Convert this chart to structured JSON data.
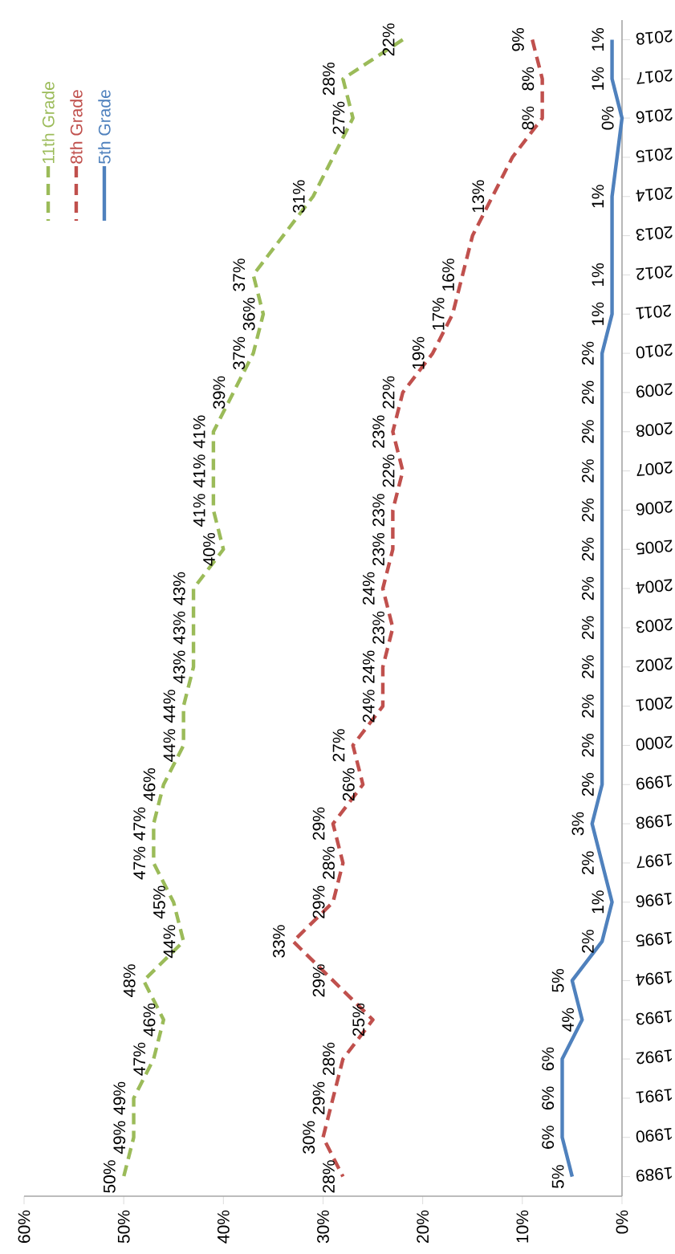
{
  "chart_data": {
    "type": "line",
    "orientation": "horizontal",
    "categories": [
      "2018",
      "2017",
      "2016",
      "2015",
      "2014",
      "2013",
      "2012",
      "2011",
      "2010",
      "2009",
      "2008",
      "2007",
      "2006",
      "2005",
      "2004",
      "2003",
      "2002",
      "2001",
      "2000",
      "1999",
      "1998",
      "1997",
      "1996",
      "1995",
      "1994",
      "1993",
      "1992",
      "1991",
      "1990",
      "1989"
    ],
    "series": [
      {
        "name": "11th Grade",
        "color": "#9bbb59",
        "line_style": "dashed",
        "values": [
          22,
          28,
          27,
          29,
          31,
          34,
          37,
          36,
          37,
          39,
          41,
          41,
          41,
          40,
          43,
          43,
          43,
          44,
          44,
          46,
          47,
          47,
          45,
          44,
          48,
          46,
          47,
          49,
          49,
          50
        ],
        "value_labels": [
          "22%",
          "28%",
          "27%",
          null,
          "31%",
          null,
          "37%",
          "36%",
          "37%",
          "39%",
          "41%",
          "41%",
          "41%",
          "40%",
          "43%",
          "43%",
          "43%",
          "44%",
          "44%",
          "46%",
          "47%",
          "47%",
          "45%",
          "44%",
          "48%",
          "46%",
          "47%",
          "49%",
          "49%",
          "50%"
        ]
      },
      {
        "name": "8th Grade",
        "color": "#c0504d",
        "line_style": "dashed",
        "values": [
          9,
          8,
          8,
          11,
          13,
          15,
          16,
          17,
          19,
          22,
          23,
          22,
          23,
          23,
          24,
          23,
          24,
          24,
          27,
          26,
          29,
          28,
          29,
          33,
          29,
          25,
          28,
          29,
          30,
          28
        ],
        "value_labels": [
          "9%",
          "8%",
          "8%",
          null,
          "13%",
          null,
          "16%",
          "17%",
          "19%",
          "22%",
          "23%",
          "22%",
          "23%",
          "23%",
          "24%",
          "23%",
          "24%",
          "24%",
          "27%",
          "26%",
          "29%",
          "28%",
          "29%",
          "33%",
          "29%",
          "25%",
          "28%",
          "29%",
          "30%",
          "28%"
        ]
      },
      {
        "name": "5th Grade",
        "color": "#4f81bd",
        "line_style": "solid",
        "values": [
          1,
          1,
          0,
          0.5,
          1,
          1,
          1,
          1,
          2,
          2,
          2,
          2,
          2,
          2,
          2,
          2,
          2,
          2,
          2,
          2,
          3,
          2,
          1,
          2,
          5,
          4,
          6,
          6,
          6,
          5
        ],
        "value_labels": [
          "1%",
          "1%",
          "0%",
          null,
          "1%",
          null,
          "1%",
          "1%",
          "2%",
          "2%",
          "2%",
          "2%",
          "2%",
          "2%",
          "2%",
          "2%",
          "2%",
          "2%",
          "2%",
          "2%",
          "3%",
          "2%",
          "1%",
          "2%",
          "5%",
          "4%",
          "6%",
          "6%",
          "6%",
          "5%"
        ]
      }
    ],
    "xlim": [
      60,
      0
    ],
    "xticks": [
      {
        "value": 60,
        "label": "60%"
      },
      {
        "value": 50,
        "label": "50%"
      },
      {
        "value": 40,
        "label": "40%"
      },
      {
        "value": 30,
        "label": "30%"
      },
      {
        "value": 20,
        "label": "20%"
      },
      {
        "value": 10,
        "label": "10%"
      },
      {
        "value": 0,
        "label": "0%"
      }
    ],
    "grid": false,
    "legend": "top left"
  }
}
